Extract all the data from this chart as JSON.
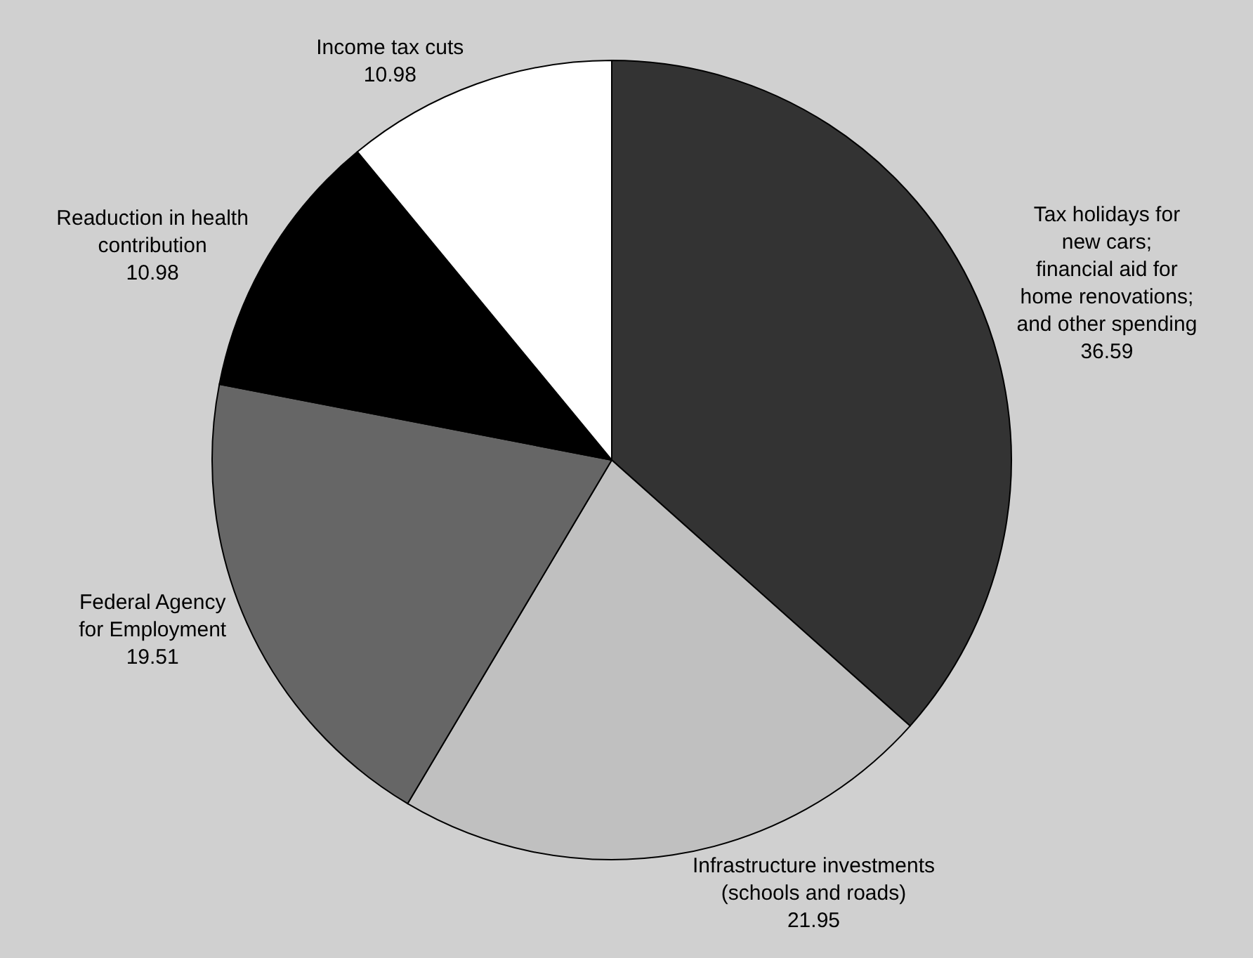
{
  "chart_data": {
    "type": "pie",
    "categories": [
      "Tax holidays for\nnew cars;\nfinancial aid for\nhome renovations;\nand other spending",
      "Infrastructure investments\n(schools and roads)",
      "Federal Agency\nfor Employment",
      "Readuction in health\ncontribution",
      "Income tax cuts"
    ],
    "values": [
      36.59,
      21.95,
      19.51,
      10.98,
      10.98
    ],
    "colors": [
      "#333333",
      "#c0c0c0",
      "#666666",
      "#000000",
      "#ffffff"
    ],
    "data_labels": true,
    "legend": false
  }
}
